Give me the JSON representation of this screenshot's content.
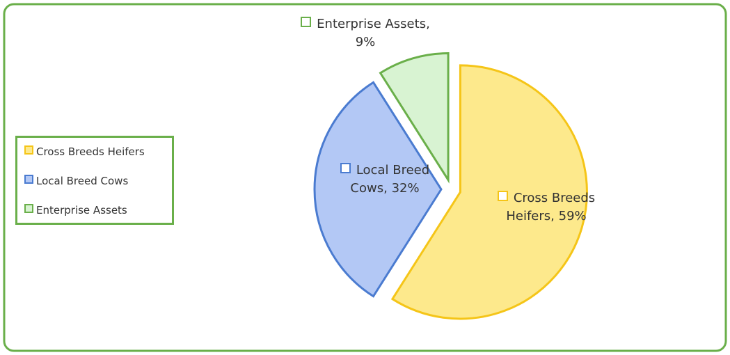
{
  "chart_data": {
    "type": "pie",
    "categories": [
      "Cross Breeds Heifers",
      "Local Breed Cows",
      "Enterprise Assets"
    ],
    "values": [
      59,
      32,
      9
    ],
    "value_labels": [
      "59%",
      "32%",
      "9%"
    ],
    "colors": [
      "#f5c518",
      "#4a7bd0",
      "#6aaf4a"
    ],
    "fills": [
      "#fde98c",
      "#b3c8f5",
      "#d8f3d2"
    ],
    "legend": "left"
  }
}
